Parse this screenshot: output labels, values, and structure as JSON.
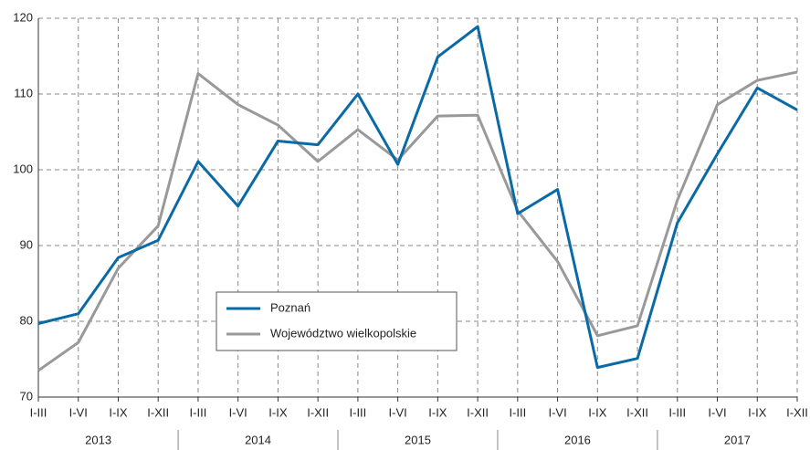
{
  "chart_data": {
    "type": "line",
    "categories": [
      "I-III",
      "I-VI",
      "I-IX",
      "I-XII",
      "I-III",
      "I-VI",
      "I-IX",
      "I-XII",
      "I-III",
      "I-VI",
      "I-IX",
      "I-XII",
      "I-III",
      "I-VI",
      "I-IX",
      "I-XII",
      "I-III",
      "I-VI",
      "I-IX",
      "I-XII"
    ],
    "groups": [
      "2013",
      "2014",
      "2015",
      "2016",
      "2017"
    ],
    "series": [
      {
        "name": "Poznań",
        "color": "#0a6aa6",
        "values": [
          79.7,
          81,
          88.4,
          90.7,
          101.1,
          95.2,
          103.8,
          103.3,
          110,
          100.7,
          114.9,
          118.9,
          94.2,
          97.4,
          73.9,
          75.1,
          93,
          102.1,
          110.8,
          107.9
        ]
      },
      {
        "name": "Województwo wielkopolskie",
        "color": "#999999",
        "values": [
          73.5,
          77.2,
          87,
          92.6,
          112.7,
          108.6,
          105.9,
          101.1,
          105.3,
          101.3,
          107.1,
          107.2,
          94.6,
          87.9,
          78.1,
          79.4,
          96,
          108.6,
          111.8,
          112.9
        ]
      }
    ],
    "ylim": [
      70,
      120
    ],
    "yticks": [
      70,
      80,
      90,
      100,
      110,
      120
    ],
    "grid": true
  }
}
